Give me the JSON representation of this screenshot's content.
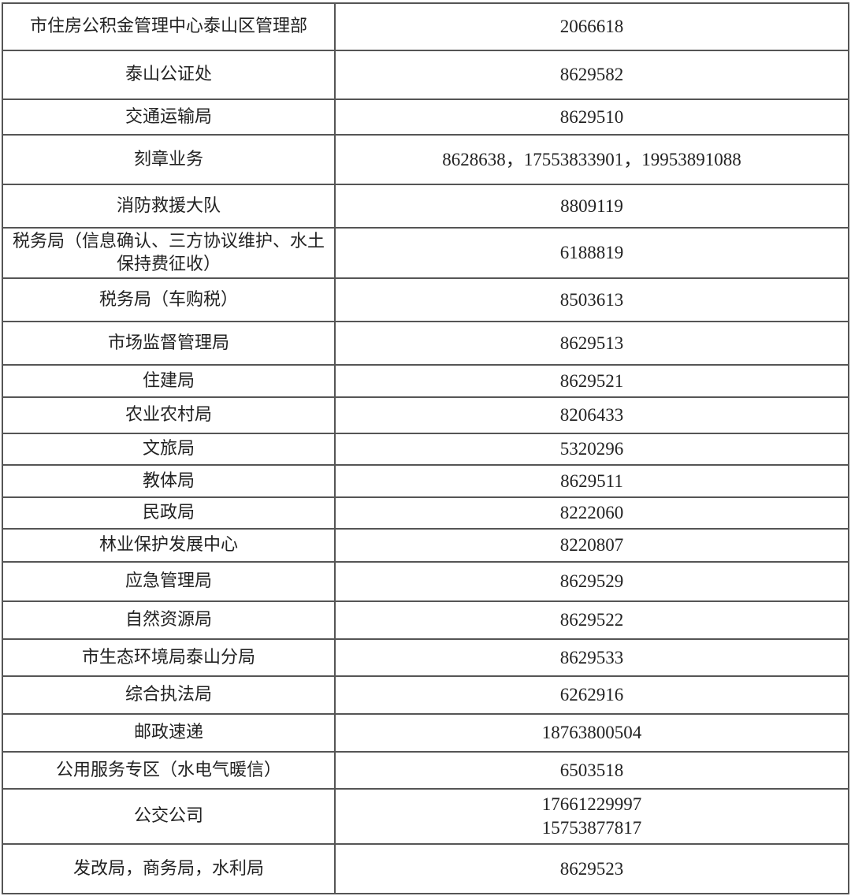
{
  "rows": [
    {
      "name": "市住房公积金管理中心泰山区管理部",
      "phone": "2066618"
    },
    {
      "name": "泰山公证处",
      "phone": "8629582"
    },
    {
      "name": "交通运输局",
      "phone": "8629510"
    },
    {
      "name": "刻章业务",
      "phone": "8628638，17553833901，19953891088"
    },
    {
      "name": "消防救援大队",
      "phone": "8809119"
    },
    {
      "name": "税务局（信息确认、三方协议维护、水土保持费征收）",
      "phone": "6188819"
    },
    {
      "name": "税务局（车购税）",
      "phone": "8503613"
    },
    {
      "name": "市场监督管理局",
      "phone": "8629513"
    },
    {
      "name": "住建局",
      "phone": "8629521"
    },
    {
      "name": "农业农村局",
      "phone": "8206433"
    },
    {
      "name": "文旅局",
      "phone": "5320296"
    },
    {
      "name": "教体局",
      "phone": "8629511"
    },
    {
      "name": "民政局",
      "phone": "8222060"
    },
    {
      "name": "林业保护发展中心",
      "phone": "8220807"
    },
    {
      "name": "应急管理局",
      "phone": "8629529"
    },
    {
      "name": "自然资源局",
      "phone": "8629522"
    },
    {
      "name": "市生态环境局泰山分局",
      "phone": "8629533"
    },
    {
      "name": "综合执法局",
      "phone": "6262916"
    },
    {
      "name": "邮政速递",
      "phone": "18763800504"
    },
    {
      "name": "公用服务专区（水电气暖信）",
      "phone": "6503518"
    },
    {
      "name": "公交公司",
      "phone": "17661229997",
      "phone2": "15753877817"
    },
    {
      "name": "发改局，商务局，水利局",
      "phone": "8629523"
    }
  ]
}
